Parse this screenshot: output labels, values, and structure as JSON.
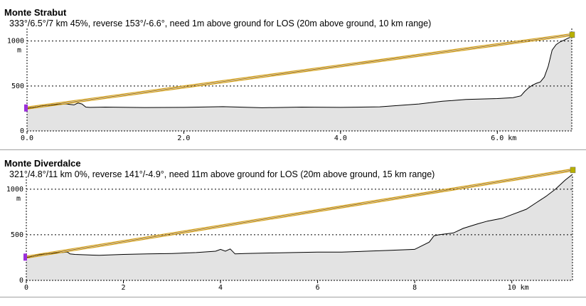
{
  "colors": {
    "terrain_fill": "#e3e3e3",
    "terrain_line": "#000000",
    "los_line": "#d4a017",
    "start_marker": "#9b30d9",
    "end_marker": "#b8b000",
    "grid": "#000000"
  },
  "chart_data": [
    {
      "type": "area",
      "title": "Monte Strabut",
      "info": "333°/6.5°/7 km 45%, reverse 153°/-6.6°, need 1m above ground for LOS (20m above ground, 10 km range)",
      "ylabel": "m",
      "xunit": "km",
      "xlim": [
        0,
        6.95
      ],
      "ylim": [
        0,
        1100
      ],
      "grid": true,
      "yticks": [
        {
          "value": 0,
          "label": "0"
        },
        {
          "value": 500,
          "label": "500"
        },
        {
          "value": 1000,
          "label": "1000"
        }
      ],
      "xticks": [
        {
          "value": 0,
          "label": "0.0"
        },
        {
          "value": 2,
          "label": "2.0"
        },
        {
          "value": 4,
          "label": "4.0"
        },
        {
          "value": 6,
          "label": "6.0"
        }
      ],
      "terrain": {
        "x": [
          0,
          0.2,
          0.4,
          0.5,
          0.6,
          0.65,
          0.7,
          0.75,
          0.8,
          1.0,
          1.5,
          2.0,
          2.5,
          3.0,
          3.5,
          4.0,
          4.5,
          5.0,
          5.3,
          5.6,
          5.8,
          6.0,
          6.2,
          6.3,
          6.35,
          6.4,
          6.45,
          6.5,
          6.55,
          6.6,
          6.65,
          6.7,
          6.75,
          6.8,
          6.85,
          6.9,
          6.95
        ],
        "y": [
          250,
          280,
          295,
          300,
          290,
          310,
          300,
          265,
          262,
          265,
          260,
          262,
          270,
          258,
          265,
          262,
          268,
          300,
          330,
          350,
          355,
          360,
          370,
          390,
          440,
          480,
          510,
          530,
          545,
          600,
          720,
          900,
          960,
          990,
          1010,
          1030,
          1050
        ]
      },
      "los": {
        "x": [
          0,
          6.95
        ],
        "y": [
          255,
          1070
        ]
      },
      "markers": {
        "start": {
          "x": 0,
          "y": 255
        },
        "end": {
          "x": 6.95,
          "y": 1070
        }
      }
    },
    {
      "type": "area",
      "title": "Monte Diverdalce",
      "info": "321°/4.8°/11 km 0%, reverse 141°/-4.9°, need 11m above ground for LOS (20m above ground, 15 km range)",
      "ylabel": "m",
      "xunit": "km",
      "xlim": [
        0,
        11.25
      ],
      "ylim": [
        0,
        1100
      ],
      "grid": true,
      "yticks": [
        {
          "value": 0,
          "label": "0"
        },
        {
          "value": 500,
          "label": "500"
        },
        {
          "value": 1000,
          "label": "1000"
        }
      ],
      "xticks": [
        {
          "value": 0,
          "label": "0"
        },
        {
          "value": 2,
          "label": "2"
        },
        {
          "value": 4,
          "label": "4"
        },
        {
          "value": 6,
          "label": "6"
        },
        {
          "value": 8,
          "label": "8"
        },
        {
          "value": 10,
          "label": "10"
        }
      ],
      "terrain": {
        "x": [
          0,
          0.3,
          0.6,
          0.85,
          0.9,
          1.0,
          1.5,
          2.0,
          2.5,
          3.0,
          3.5,
          3.9,
          4.0,
          4.1,
          4.2,
          4.3,
          4.5,
          5.0,
          5.5,
          6.0,
          6.5,
          7.0,
          7.5,
          8.0,
          8.3,
          8.4,
          8.5,
          8.8,
          9.0,
          9.3,
          9.5,
          9.8,
          10.0,
          10.3,
          10.5,
          10.7,
          10.9,
          11.1,
          11.25
        ],
        "y": [
          250,
          285,
          300,
          310,
          290,
          285,
          275,
          285,
          290,
          295,
          305,
          320,
          340,
          320,
          345,
          290,
          295,
          300,
          305,
          310,
          310,
          320,
          330,
          340,
          420,
          490,
          500,
          520,
          570,
          620,
          650,
          680,
          720,
          780,
          850,
          920,
          1000,
          1100,
          1200
        ]
      },
      "los": {
        "x": [
          0,
          11.25
        ],
        "y": [
          255,
          1210
        ]
      },
      "markers": {
        "start": {
          "x": 0,
          "y": 255
        },
        "end": {
          "x": 11.25,
          "y": 1210
        }
      }
    }
  ]
}
